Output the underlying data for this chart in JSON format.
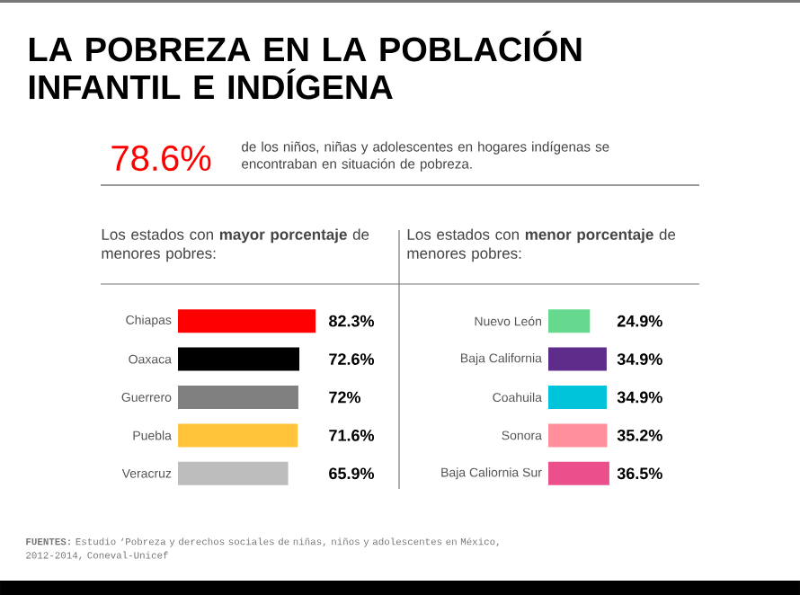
{
  "chart_data": [
    {
      "type": "bar",
      "orientation": "horizontal",
      "title": "LA POBREZA EN LA POBLACIÓN INFANTIL E INDÍGENA",
      "subtitle": "Los estados con **mayor porcentaje** de menores pobres:",
      "annotations": [
        "78.6%",
        "de los niños, niñas y adolescentes en hogares indígenas se encontraban en situación de pobreza.",
        "**FUENTES:** Estudio ‘Pobreza y derechos sociales de niñas, niños y adolescentes en México, 2012-2014, Coneval-Unicef"
      ],
      "categories": [
        "Chiapas",
        "Oaxaca",
        "Guerrero",
        "Puebla",
        "Veracruz"
      ],
      "values": [
        82.3,
        72.6,
        72,
        71.6,
        65.9
      ],
      "colors": [
        "#ff0000",
        "#000000",
        "#808080",
        "#ffc43a",
        "#bdbdbd"
      ],
      "value_labels": [
        "82.3%",
        "72.6%",
        "72%",
        "71.6%",
        "65.9%"
      ],
      "tick_labels": "y"
    },
    {
      "type": "bar",
      "orientation": "horizontal",
      "subtitle": "Los estados con **menor porcentaje** de menores pobres:",
      "categories": [
        "Nuevo León",
        "Baja California",
        "Coahuila",
        "Sonora",
        "Baja Caliornia Sur"
      ],
      "values": [
        24.9,
        34.9,
        34.9,
        35.2,
        36.5
      ],
      "colors": [
        "#66d98f",
        "#5e2d8c",
        "#00c4d9",
        "#ff8f9a",
        "#eb4f8c"
      ],
      "value_labels": [
        "24.9%",
        "34.9%",
        "34.9%",
        "35.2%",
        "36.5%"
      ],
      "tick_labels": "y"
    }
  ]
}
